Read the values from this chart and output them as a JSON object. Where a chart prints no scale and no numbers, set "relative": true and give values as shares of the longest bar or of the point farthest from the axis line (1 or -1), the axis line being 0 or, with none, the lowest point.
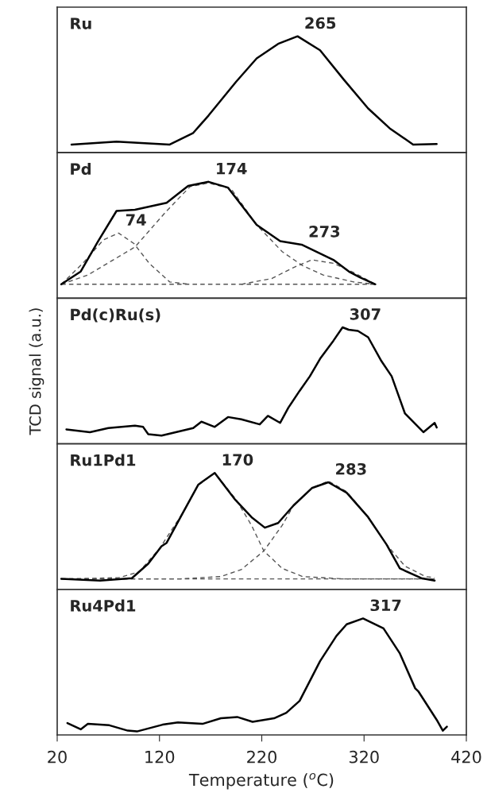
{
  "chart_data": [
    {
      "type": "line",
      "title": "Ru",
      "relative": true,
      "xlim": [
        20,
        420
      ],
      "tick_labels": false,
      "annotations": [
        {
          "text": "265",
          "x": 255,
          "y": 1
        }
      ],
      "series": [
        {
          "color": "#000000",
          "line_style": "solid",
          "x": [
            34,
            78,
            130,
            153,
            168,
            195,
            215,
            236,
            255,
            277,
            300,
            324,
            345,
            368,
            391
          ],
          "values": [
            0.07,
            0.095,
            0.07,
            0.17,
            0.32,
            0.61,
            0.81,
            0.935,
            1,
            0.88,
            0.63,
            0.38,
            0.21,
            0.07,
            0.075
          ]
        }
      ]
    },
    {
      "type": "line",
      "title": "Pd",
      "relative": true,
      "xlim": [
        20,
        420
      ],
      "tick_labels": false,
      "annotations": [
        {
          "text": "74",
          "x": 80,
          "y": 0.56
        },
        {
          "text": "174",
          "x": 168,
          "y": 1
        },
        {
          "text": "273",
          "x": 259,
          "y": 0.46
        }
      ],
      "series": [
        {
          "color": "#555555",
          "line_style": "dashed",
          "x": [
            24,
            331
          ],
          "values": [
            0.12,
            0.12
          ]
        },
        {
          "color": "#555555",
          "line_style": "dashed",
          "x": [
            24,
            45,
            65,
            80,
            95,
            110,
            130,
            150
          ],
          "values": [
            0.12,
            0.3,
            0.5,
            0.56,
            0.47,
            0.3,
            0.14,
            0.12
          ]
        },
        {
          "color": "#555555",
          "line_style": "dashed",
          "x": [
            24,
            50,
            96,
            127,
            150,
            168,
            190,
            215,
            240,
            260,
            280,
            310,
            331
          ],
          "values": [
            0.12,
            0.2,
            0.44,
            0.75,
            0.96,
            0.99,
            0.94,
            0.63,
            0.4,
            0.28,
            0.2,
            0.14,
            0.12
          ]
        },
        {
          "color": "#555555",
          "line_style": "dashed",
          "x": [
            200,
            230,
            250,
            269,
            290,
            310,
            331
          ],
          "values": [
            0.12,
            0.17,
            0.26,
            0.33,
            0.3,
            0.22,
            0.12
          ]
        },
        {
          "color": "#000000",
          "line_style": "solid",
          "x": [
            24,
            43,
            60,
            78,
            96,
            127,
            148,
            168,
            187,
            215,
            238,
            259,
            290,
            306,
            316,
            331
          ],
          "values": [
            0.12,
            0.23,
            0.49,
            0.75,
            0.76,
            0.82,
            0.965,
            1,
            0.95,
            0.63,
            0.49,
            0.46,
            0.33,
            0.225,
            0.18,
            0.12
          ]
        }
      ]
    },
    {
      "type": "line",
      "title": "Pd(c)Ru(s)",
      "ylabel": "TCD signal (a.u.)",
      "relative": true,
      "xlim": [
        20,
        420
      ],
      "tick_labels": false,
      "annotations": [
        {
          "text": "307",
          "x": 299,
          "y": 1
        }
      ],
      "series": [
        {
          "color": "#000000",
          "line_style": "solid",
          "x": [
            29,
            52,
            70,
            96,
            104,
            109,
            122,
            153,
            161,
            174,
            187,
            200,
            218,
            226,
            238,
            246,
            257,
            267,
            277,
            290,
            299,
            305,
            314,
            324,
            337,
            347,
            360,
            378,
            389,
            391
          ],
          "values": [
            0.124,
            0.1,
            0.135,
            0.156,
            0.145,
            0.083,
            0.07,
            0.135,
            0.19,
            0.145,
            0.23,
            0.21,
            0.167,
            0.24,
            0.18,
            0.31,
            0.455,
            0.58,
            0.73,
            0.885,
            1,
            0.98,
            0.97,
            0.915,
            0.71,
            0.58,
            0.26,
            0.1,
            0.18,
            0.14
          ]
        }
      ]
    },
    {
      "type": "line",
      "title": "Ru1Pd1",
      "relative": true,
      "xlim": [
        20,
        420
      ],
      "tick_labels": false,
      "annotations": [
        {
          "text": "170",
          "x": 174,
          "y": 1
        },
        {
          "text": "283",
          "x": 285,
          "y": 0.92
        }
      ],
      "series": [
        {
          "color": "#555555",
          "line_style": "dashed",
          "x": [
            24,
            389
          ],
          "values": [
            0.09,
            0.09
          ]
        },
        {
          "color": "#555555",
          "line_style": "dashed",
          "x": [
            24,
            80,
            100,
            120,
            143,
            158,
            174,
            195,
            210,
            222,
            240,
            260,
            300,
            389
          ],
          "values": [
            0.09,
            0.1,
            0.15,
            0.35,
            0.66,
            0.9,
            1,
            0.77,
            0.55,
            0.33,
            0.18,
            0.11,
            0.09,
            0.09
          ]
        },
        {
          "color": "#555555",
          "line_style": "dashed",
          "x": [
            24,
            140,
            180,
            200,
            222,
            240,
            251,
            269,
            285,
            303,
            324,
            342,
            360,
            380,
            389
          ],
          "values": [
            0.09,
            0.09,
            0.11,
            0.17,
            0.33,
            0.55,
            0.72,
            0.87,
            0.93,
            0.84,
            0.62,
            0.385,
            0.2,
            0.11,
            0.1
          ]
        },
        {
          "color": "#000000",
          "line_style": "solid",
          "x": [
            24,
            62,
            93,
            109,
            122,
            127,
            143,
            158,
            174,
            194,
            210,
            223,
            236,
            251,
            269,
            285,
            303,
            324,
            342,
            355,
            376,
            389
          ],
          "values": [
            0.09,
            0.075,
            0.096,
            0.22,
            0.37,
            0.4,
            0.66,
            0.9,
            1,
            0.77,
            0.62,
            0.53,
            0.57,
            0.72,
            0.87,
            0.92,
            0.83,
            0.62,
            0.385,
            0.18,
            0.096,
            0.075
          ]
        }
      ]
    },
    {
      "type": "line",
      "title": "Ru4Pd1",
      "xlabel": "Temperature ($^{o}$C)",
      "relative": true,
      "xlim": [
        20,
        420
      ],
      "xticks": [
        20,
        120,
        220,
        320,
        420
      ],
      "tick_labels": "x",
      "annotations": [
        {
          "text": "317",
          "x": 319,
          "y": 1
        }
      ],
      "series": [
        {
          "color": "#000000",
          "line_style": "solid",
          "x": [
            30,
            43,
            50,
            71,
            89,
            98,
            123,
            138,
            162,
            180,
            196,
            211,
            232,
            244,
            257,
            277,
            293,
            303,
            319,
            339,
            355,
            370,
            373,
            391,
            397,
            401
          ],
          "values": [
            0.102,
            0.048,
            0.095,
            0.083,
            0.037,
            0.03,
            0.088,
            0.107,
            0.095,
            0.143,
            0.154,
            0.113,
            0.143,
            0.19,
            0.293,
            0.634,
            0.85,
            0.95,
            1,
            0.915,
            0.7,
            0.4,
            0.375,
            0.13,
            0.036,
            0.071
          ]
        }
      ]
    }
  ]
}
